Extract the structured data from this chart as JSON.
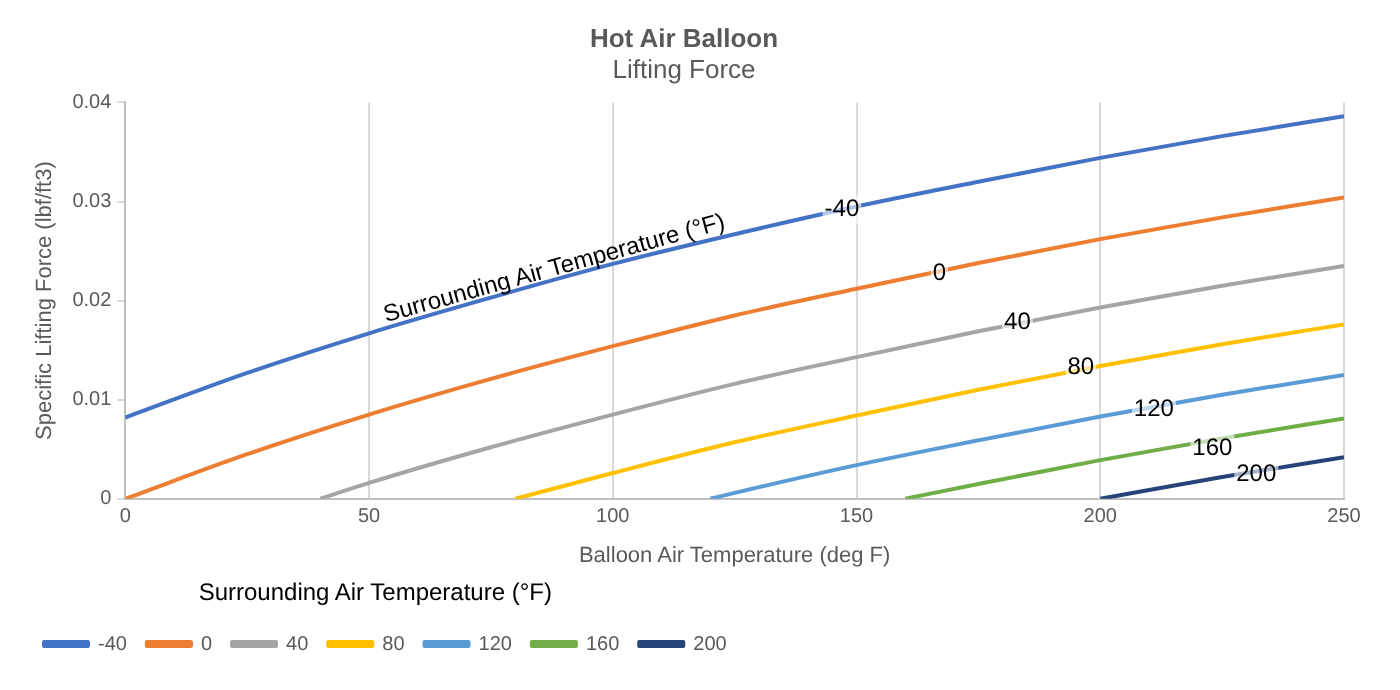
{
  "chart_data": {
    "type": "line",
    "title": "Hot Air Balloon",
    "subtitle": "Lifting Force",
    "xlabel": "Balloon Air Temperature (deg F)",
    "ylabel": "Specific Lifting Force (lbf/ft3)",
    "legend_title": "Surrounding Air Temperature (°F)",
    "legend": "bottom",
    "grid": "x",
    "marker": "none",
    "line_style": "solid",
    "xlim": [
      0,
      250
    ],
    "xticks": [
      0,
      50,
      100,
      150,
      200,
      250
    ],
    "ylim": [
      0,
      0.04
    ],
    "yticks": [
      0,
      0.01,
      0.02,
      0.03,
      0.04
    ],
    "series": [
      {
        "name": "-40",
        "color": "#4472c4",
        "x": [
          0,
          25,
          50,
          75,
          100,
          125,
          150,
          175,
          200,
          225,
          250
        ],
        "values": [
          0.0082,
          0.0127,
          0.0167,
          0.0203,
          0.0237,
          0.0267,
          0.0295,
          0.032,
          0.0344,
          0.0366,
          0.0386
        ]
      },
      {
        "name": "0",
        "color": "#ed7d31",
        "x": [
          0,
          25,
          50,
          75,
          100,
          125,
          150,
          175,
          200,
          225,
          250
        ],
        "values": [
          0,
          0.0045,
          0.0085,
          0.0121,
          0.0154,
          0.0185,
          0.0212,
          0.0238,
          0.0262,
          0.0284,
          0.0304
        ]
      },
      {
        "name": "40",
        "color": "#a5a5a5",
        "x": [
          40,
          50,
          75,
          100,
          125,
          150,
          175,
          200,
          225,
          250
        ],
        "values": [
          0,
          0.0016,
          0.0052,
          0.0085,
          0.0116,
          0.0143,
          0.0169,
          0.0193,
          0.0215,
          0.0235
        ]
      },
      {
        "name": "80",
        "color": "#ffc000",
        "x": [
          80,
          100,
          125,
          150,
          175,
          200,
          225,
          250
        ],
        "values": [
          0,
          0.0026,
          0.0057,
          0.0084,
          0.011,
          0.0134,
          0.0156,
          0.0176
        ]
      },
      {
        "name": "120",
        "color": "#5b9bd5",
        "x": [
          120,
          125,
          150,
          175,
          200,
          225,
          250
        ],
        "values": [
          0,
          0.0006,
          0.0034,
          0.0059,
          0.0083,
          0.0105,
          0.0125
        ]
      },
      {
        "name": "160",
        "color": "#70ad47",
        "x": [
          160,
          175,
          200,
          225,
          250
        ],
        "values": [
          0,
          0.0015,
          0.0039,
          0.0061,
          0.0081
        ]
      },
      {
        "name": "200",
        "color": "#264478",
        "x": [
          200,
          225,
          250
        ],
        "values": [
          0,
          0.0022,
          0.0042
        ]
      }
    ],
    "annotations": [
      {
        "text": "Surrounding Air Temperature (°F)",
        "x": 88,
        "y": 0.0232
      },
      {
        "text": "-40",
        "x": 147,
        "y": 0.0292
      },
      {
        "text": "0",
        "x": 167,
        "y": 0.0227
      },
      {
        "text": "40",
        "x": 183,
        "y": 0.0178
      },
      {
        "text": "80",
        "x": 196,
        "y": 0.0133
      },
      {
        "text": "120",
        "x": 211,
        "y": 0.009
      },
      {
        "text": "160",
        "x": 223,
        "y": 0.0051
      },
      {
        "text": "200",
        "x": 232,
        "y": 0.0025
      }
    ]
  }
}
